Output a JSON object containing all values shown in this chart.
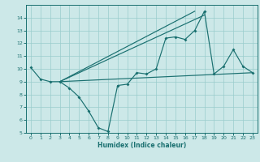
{
  "xlabel": "Humidex (Indice chaleur)",
  "background_color": "#cce8e8",
  "line_color": "#1a7070",
  "grid_color": "#99cccc",
  "xlim": [
    -0.5,
    23.5
  ],
  "ylim": [
    5,
    15
  ],
  "yticks": [
    5,
    6,
    7,
    8,
    9,
    10,
    11,
    12,
    13,
    14
  ],
  "xticks": [
    0,
    1,
    2,
    3,
    4,
    5,
    6,
    7,
    8,
    9,
    10,
    11,
    12,
    13,
    14,
    15,
    16,
    17,
    18,
    19,
    20,
    21,
    22,
    23
  ],
  "line_main": {
    "x": [
      0,
      1,
      2,
      3,
      4,
      5,
      6,
      7,
      8,
      9,
      10,
      11,
      12,
      13,
      14,
      15,
      16,
      17,
      18,
      19,
      20,
      21,
      22,
      23
    ],
    "y": [
      10.1,
      9.2,
      9.0,
      9.0,
      8.5,
      7.8,
      6.7,
      5.4,
      5.1,
      8.7,
      8.8,
      9.7,
      9.6,
      10.0,
      12.4,
      12.5,
      12.3,
      13.0,
      14.5,
      9.6,
      10.2,
      11.5,
      10.2,
      9.7
    ]
  },
  "line_flat": {
    "x": [
      3,
      23
    ],
    "y": [
      9.0,
      9.7
    ]
  },
  "line_steep1": {
    "x": [
      3,
      17
    ],
    "y": [
      9.0,
      14.5
    ]
  },
  "line_steep2": {
    "x": [
      3,
      18
    ],
    "y": [
      9.0,
      14.2
    ]
  }
}
